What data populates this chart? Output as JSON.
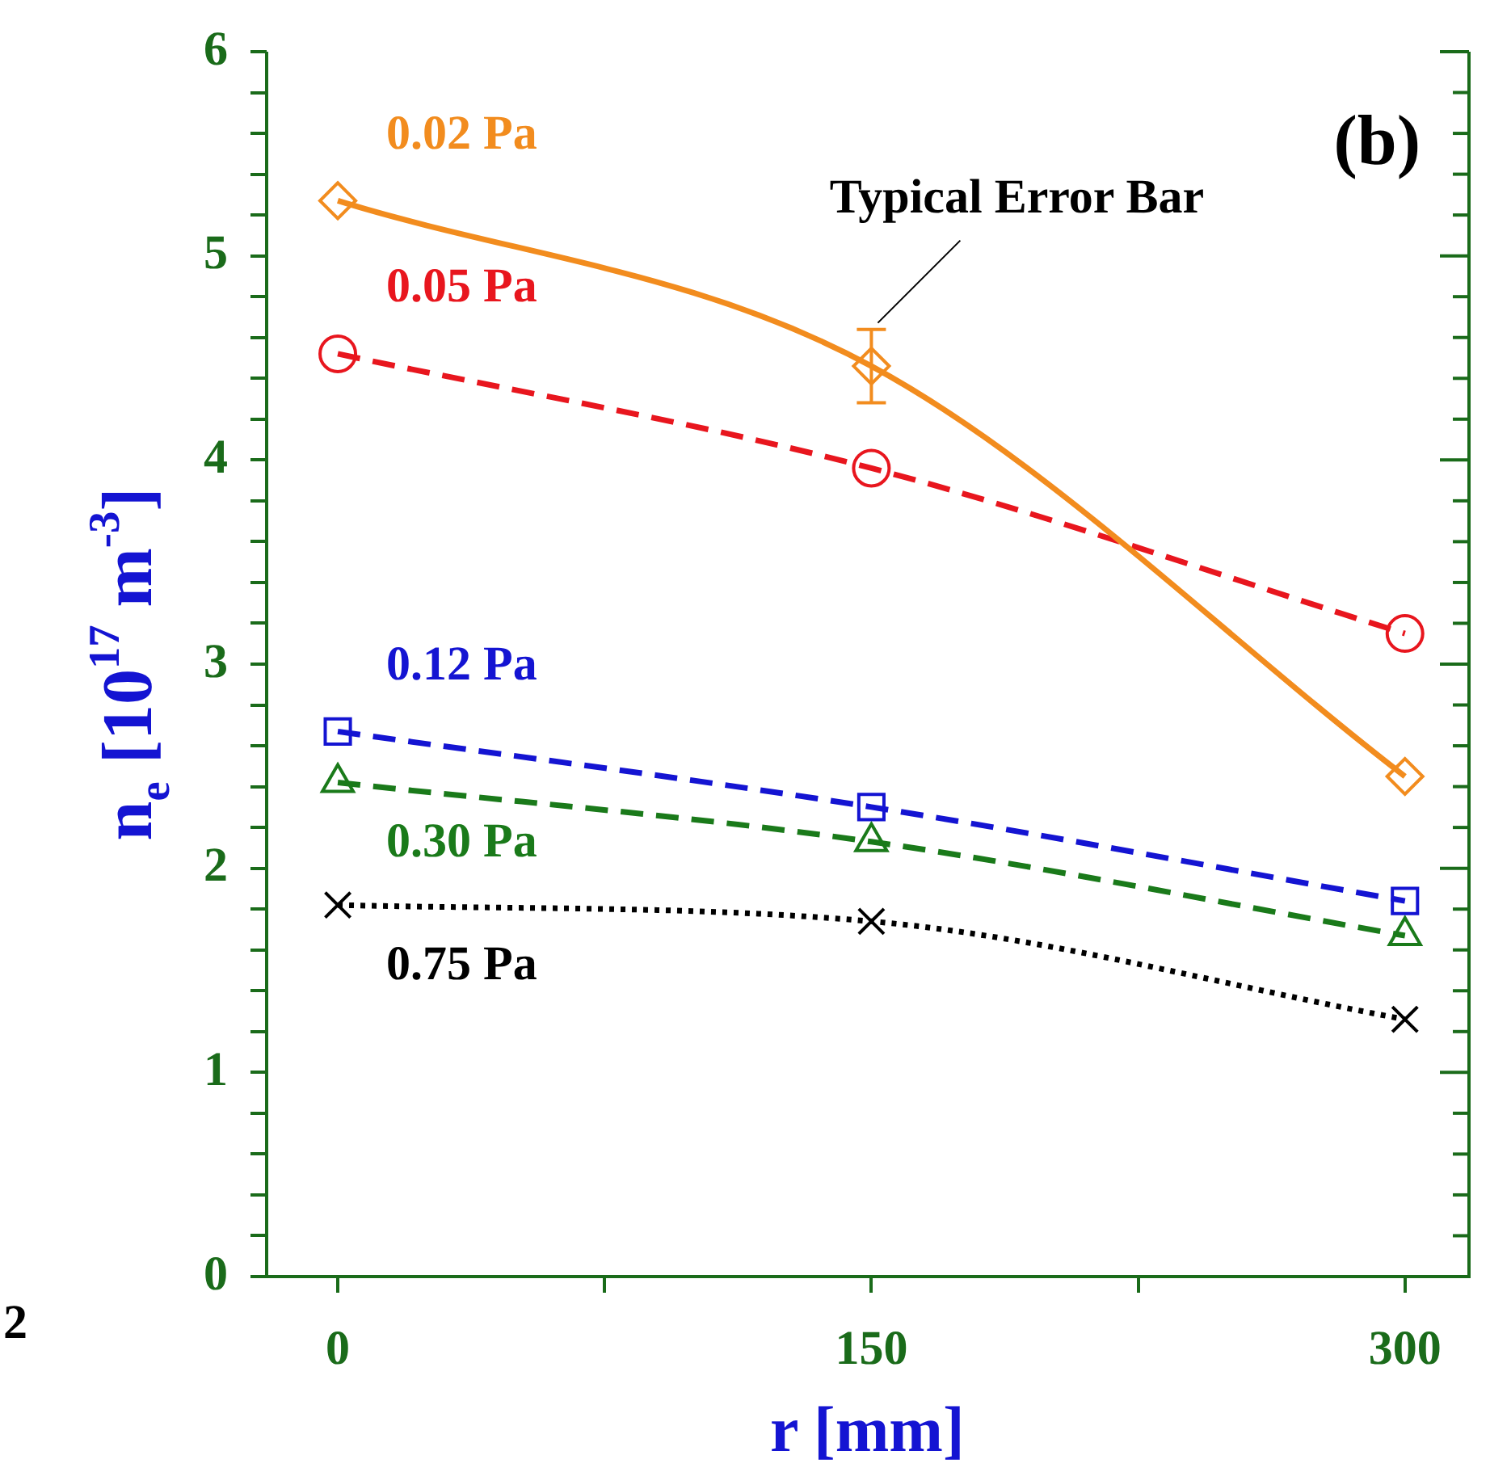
{
  "chart_data": {
    "type": "line",
    "xlabel": "r [mm]",
    "ylabel": "n$_{e}$ [10$^{17}$ m$^{-3}$]",
    "x": [
      0,
      150,
      300
    ],
    "xlim": [
      -20,
      318
    ],
    "xticks": [
      0,
      {
        "value": 75,
        "label": null
      },
      150,
      {
        "value": 225,
        "label": null
      },
      300
    ],
    "ylim": [
      0,
      6
    ],
    "yticks": [
      0,
      {
        "value": 0.2,
        "label": null
      },
      {
        "value": 0.4,
        "label": null
      },
      {
        "value": 0.6,
        "label": null
      },
      {
        "value": 0.8,
        "label": null
      },
      1,
      {
        "value": 1.2,
        "label": null
      },
      {
        "value": 1.4,
        "label": null
      },
      {
        "value": 1.6,
        "label": null
      },
      {
        "value": 1.8,
        "label": null
      },
      2,
      {
        "value": 2.2,
        "label": null
      },
      {
        "value": 2.4,
        "label": null
      },
      {
        "value": 2.6,
        "label": null
      },
      {
        "value": 2.8,
        "label": null
      },
      3,
      {
        "value": 3.2,
        "label": null
      },
      {
        "value": 3.4,
        "label": null
      },
      {
        "value": 3.6,
        "label": null
      },
      {
        "value": 3.8,
        "label": null
      },
      4,
      {
        "value": 4.2,
        "label": null
      },
      {
        "value": 4.4,
        "label": null
      },
      {
        "value": 4.6,
        "label": null
      },
      {
        "value": 4.8,
        "label": null
      },
      5,
      {
        "value": 5.2,
        "label": null
      },
      {
        "value": 5.4,
        "label": null
      },
      {
        "value": 5.6,
        "label": null
      },
      {
        "value": 5.8,
        "label": null
      },
      6
    ],
    "grid": false,
    "legend": false,
    "series": [
      {
        "name": "0.02 Pa",
        "color": "#f28c1e",
        "values": [
          5.27,
          4.46,
          2.45
        ],
        "errors": [
          null,
          0.18,
          null
        ],
        "marker": "diamond",
        "line_style": "solid"
      },
      {
        "name": "0.05 Pa",
        "color": "#e8161e",
        "values": [
          4.52,
          3.96,
          3.15
        ],
        "marker": "circle",
        "line_style": "dashed"
      },
      {
        "name": "0.12 Pa",
        "color": "#1414d2",
        "values": [
          2.67,
          2.3,
          1.84
        ],
        "marker": "square",
        "line_style": "dashed"
      },
      {
        "name": "0.30 Pa",
        "color": "#1a7a1a",
        "values": [
          2.42,
          2.13,
          1.67
        ],
        "marker": "triangle",
        "line_style": "dashed"
      },
      {
        "name": "0.75 Pa",
        "color": "#000000",
        "values": [
          1.82,
          1.74,
          1.26
        ],
        "marker": "cross",
        "line_style": "dotted"
      }
    ],
    "annotations": [
      {
        "text": "Typical Error Bar",
        "x": 150,
        "y": 4.64
      },
      "(b)",
      "2"
    ]
  }
}
